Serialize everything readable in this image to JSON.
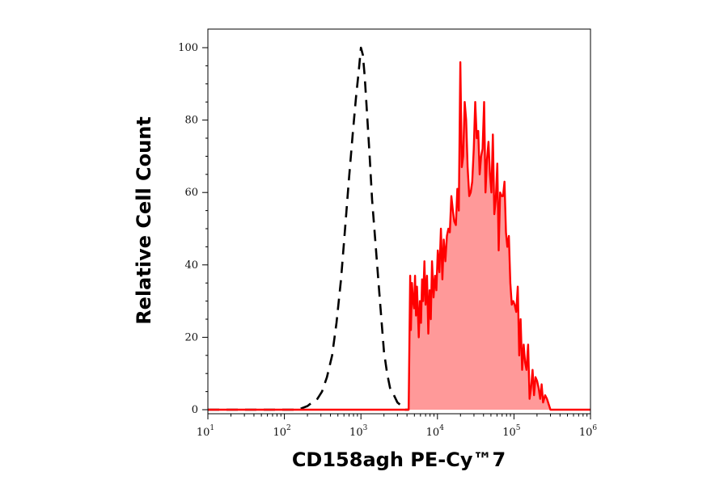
{
  "chart_data": {
    "type": "area",
    "xlabel": "CD158agh PE-Cy™7",
    "ylabel": "Relative Cell Count",
    "x_scale": "log",
    "xlim": [
      10,
      1000000
    ],
    "ylim": [
      0,
      105
    ],
    "grid": false,
    "x_ticks": [
      {
        "base": "10",
        "exp": "1"
      },
      {
        "base": "10",
        "exp": "2"
      },
      {
        "base": "10",
        "exp": "3"
      },
      {
        "base": "10",
        "exp": "4"
      },
      {
        "base": "10",
        "exp": "5"
      },
      {
        "base": "10",
        "exp": "6"
      }
    ],
    "y_ticks": [
      "0",
      "20",
      "40",
      "60",
      "80",
      "100"
    ],
    "series": [
      {
        "style": "dashed",
        "color": "#000000",
        "fill": null,
        "x": [
          10,
          120,
          150,
          200,
          230,
          270,
          310,
          360,
          420,
          480,
          550,
          620,
          700,
          780,
          860,
          940,
          1000,
          1060,
          1120,
          1200,
          1300,
          1400,
          1550,
          1700,
          1850,
          2000,
          2200,
          2400,
          2700,
          3000,
          3400,
          3800,
          4200
        ],
        "y": [
          0,
          0,
          0,
          1,
          2,
          3,
          5,
          9,
          15,
          24,
          36,
          50,
          64,
          76,
          86,
          94,
          100,
          98,
          92,
          82,
          70,
          58,
          46,
          35,
          25,
          16,
          10,
          6,
          4,
          2,
          1,
          0,
          0
        ]
      },
      {
        "style": "solid",
        "color": "#ff0000",
        "fill": "#ff9999",
        "x": [
          10,
          3000,
          4200,
          4400,
          4500,
          4650,
          4800,
          4950,
          5100,
          5250,
          5400,
          5550,
          5700,
          5900,
          6100,
          6300,
          6500,
          6750,
          7000,
          7300,
          7600,
          7900,
          8200,
          8500,
          8900,
          9300,
          9700,
          10100,
          10600,
          11100,
          11600,
          12100,
          12700,
          13300,
          13900,
          14500,
          15200,
          15900,
          16600,
          17400,
          18200,
          19000,
          19900,
          20800,
          21700,
          22700,
          23700,
          24800,
          26000,
          27200,
          28500,
          29800,
          31200,
          32600,
          34100,
          35600,
          37200,
          38900,
          40700,
          42500,
          44400,
          46400,
          48500,
          50700,
          53000,
          55400,
          57900,
          60500,
          63200,
          66000,
          69000,
          72000,
          75200,
          78500,
          82000,
          85700,
          89600,
          93600,
          97800,
          102000,
          107000,
          112000,
          117000,
          122000,
          128000,
          134000,
          140000,
          146000,
          153000,
          160000,
          167000,
          175000,
          183000,
          191000,
          200000,
          210000,
          220000,
          230000,
          240000,
          255000,
          270000,
          300000,
          1000000
        ],
        "y": [
          0,
          0,
          0,
          37,
          22,
          35,
          30,
          28,
          37,
          26,
          34,
          27,
          20,
          30,
          24,
          36,
          30,
          41,
          29,
          37,
          21,
          33,
          25,
          41,
          31,
          37,
          33,
          44,
          38,
          50,
          36,
          47,
          41,
          48,
          50,
          49,
          59,
          55,
          52,
          51,
          61,
          55,
          96,
          67,
          70,
          85,
          80,
          67,
          59,
          60,
          63,
          72,
          85,
          75,
          77,
          65,
          70,
          72,
          85,
          60,
          69,
          74,
          65,
          60,
          76,
          54,
          58,
          68,
          44,
          60,
          59,
          59,
          63,
          49,
          45,
          48,
          35,
          29,
          30,
          29,
          27,
          34,
          15,
          25,
          11,
          18,
          13,
          11,
          18,
          3,
          6,
          11,
          4,
          9,
          8,
          6,
          3,
          7,
          2,
          4,
          3,
          0,
          0
        ]
      }
    ]
  }
}
